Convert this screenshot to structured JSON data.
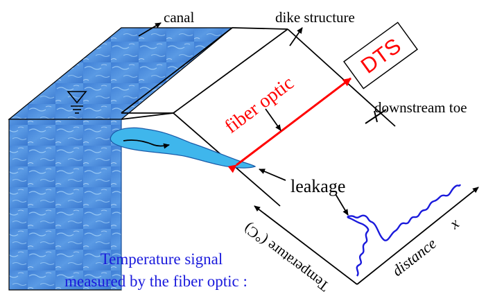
{
  "labels": {
    "canal": "canal",
    "dike_structure": "dike structure",
    "dts": "DTS",
    "fiber_optic": "fiber optic",
    "downstream_toe": "downstream toe",
    "leakage": "leakage",
    "temperature_axis": "Temperature (°C)",
    "distance_axis": "distance",
    "distance_symbol": "x",
    "caption_line1": "Temperature signal",
    "caption_line2": "measured by the fiber optic :"
  },
  "colors": {
    "water": "#4a86d8",
    "water_light": "#8fc3f0",
    "leak": "#3fb6ec",
    "fiber": "#ff0000",
    "signal": "#1a1adc",
    "caption": "#1a1adc",
    "line": "#000000"
  },
  "icons": {
    "water_level": "inverted-triangle-water-level-icon"
  }
}
